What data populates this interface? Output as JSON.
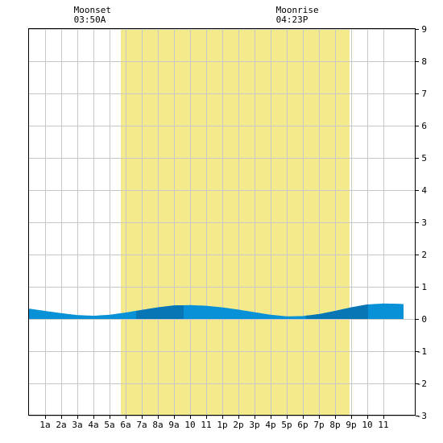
{
  "chart_data": {
    "type": "area",
    "title": "",
    "xlabel": "",
    "ylabel": "",
    "xlim": [
      0,
      24
    ],
    "ylim": [
      -3,
      9
    ],
    "grid": true,
    "legend": "none",
    "x_ticks": [
      {
        "x": 1,
        "label": "1a"
      },
      {
        "x": 2,
        "label": "2a"
      },
      {
        "x": 3,
        "label": "3a"
      },
      {
        "x": 4,
        "label": "4a"
      },
      {
        "x": 5,
        "label": "5a"
      },
      {
        "x": 6,
        "label": "6a"
      },
      {
        "x": 7,
        "label": "7a"
      },
      {
        "x": 8,
        "label": "8a"
      },
      {
        "x": 9,
        "label": "9a"
      },
      {
        "x": 10,
        "label": "10"
      },
      {
        "x": 11,
        "label": "11"
      },
      {
        "x": 12,
        "label": "1p"
      },
      {
        "x": 13,
        "label": "2p"
      },
      {
        "x": 14,
        "label": "3p"
      },
      {
        "x": 15,
        "label": "4p"
      },
      {
        "x": 16,
        "label": "5p"
      },
      {
        "x": 17,
        "label": "6p"
      },
      {
        "x": 18,
        "label": "7p"
      },
      {
        "x": 19,
        "label": "8p"
      },
      {
        "x": 20,
        "label": "9p"
      },
      {
        "x": 21,
        "label": "10"
      },
      {
        "x": 22,
        "label": "11"
      }
    ],
    "y_ticks": [
      -3,
      -2,
      -1,
      0,
      1,
      2,
      3,
      4,
      5,
      6,
      7,
      8,
      9
    ],
    "daylight": {
      "start": 5.7,
      "end": 19.9
    },
    "moon_events": [
      {
        "name": "Moonset",
        "time": "03:50A",
        "x": 3.83
      },
      {
        "name": "Moonrise",
        "time": "04:23P",
        "x": 16.38
      }
    ],
    "highlight_bands": [
      {
        "start": 6.65,
        "end": 9.6
      },
      {
        "start": 17.2,
        "end": 21.05
      }
    ],
    "series": [
      {
        "x": [
          -0.75,
          0,
          1,
          2,
          3,
          4,
          5,
          6,
          7,
          8,
          9,
          10,
          11,
          12,
          13,
          14,
          15,
          16,
          17,
          18,
          19,
          20,
          21,
          22,
          23,
          23.25
        ],
        "y": [
          0.35,
          0.32,
          0.25,
          0.18,
          0.12,
          0.1,
          0.13,
          0.2,
          0.28,
          0.36,
          0.42,
          0.43,
          0.41,
          0.36,
          0.29,
          0.21,
          0.13,
          0.08,
          0.09,
          0.15,
          0.25,
          0.36,
          0.45,
          0.48,
          0.47,
          0.46
        ]
      }
    ],
    "colors": {
      "daylight": "#f4ea8c",
      "water": "#0891d6",
      "water_dark": "#0875b5",
      "grid": "#c8c8c8",
      "border": "#000000"
    }
  }
}
